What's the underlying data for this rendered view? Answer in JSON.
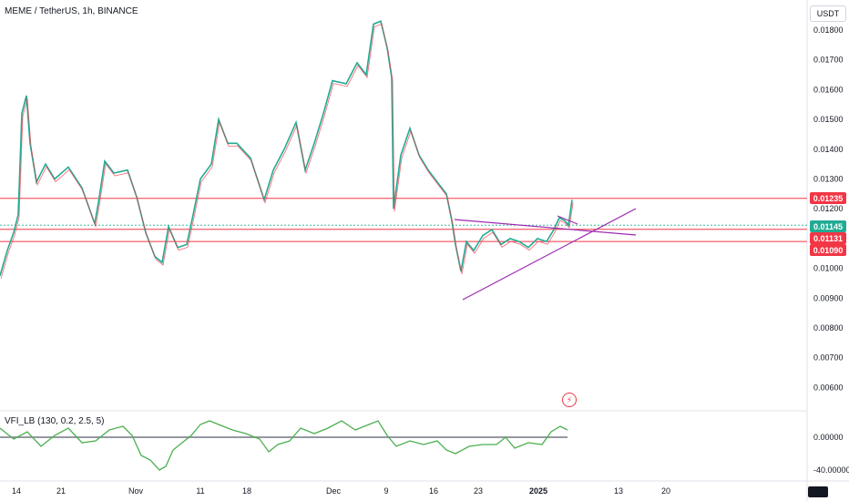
{
  "header": {
    "symbol_text": "MEME / TetherUS, 1h, BINANCE"
  },
  "toolbar": {
    "currency_label": "USDT"
  },
  "price_axis": {
    "ticks": [
      "0.01800",
      "0.01700",
      "0.01600",
      "0.01500",
      "0.01400",
      "0.01300",
      "0.01200",
      "0.01100",
      "0.01000",
      "0.00900",
      "0.00800",
      "0.00700",
      "0.00600"
    ],
    "tags": [
      {
        "label": "0.01235",
        "color": "#f23645"
      },
      {
        "label": "0.01145",
        "color": "#22ab94"
      },
      {
        "label": "0.01131",
        "color": "#f23645"
      },
      {
        "label": "0.01090",
        "color": "#f23645"
      }
    ]
  },
  "indicator": {
    "label": "VFI_LB (130, 0.2, 2.5, 5)",
    "ticks": [
      "0.00000",
      "-40.00000"
    ]
  },
  "time_axis": {
    "ticks": [
      "14",
      "21",
      "Nov",
      "11",
      "18",
      "Dec",
      "9",
      "16",
      "23",
      "2025",
      "13",
      "20"
    ]
  },
  "colors": {
    "up": "#22ab94",
    "down": "#f23645",
    "line": "#f23645",
    "trend": "#9c27b0",
    "vfi": "#4caf50",
    "zero": "#9598a1"
  },
  "icons": {
    "alert": "lightning-icon",
    "logo": "tradingview-logo-icon"
  }
}
